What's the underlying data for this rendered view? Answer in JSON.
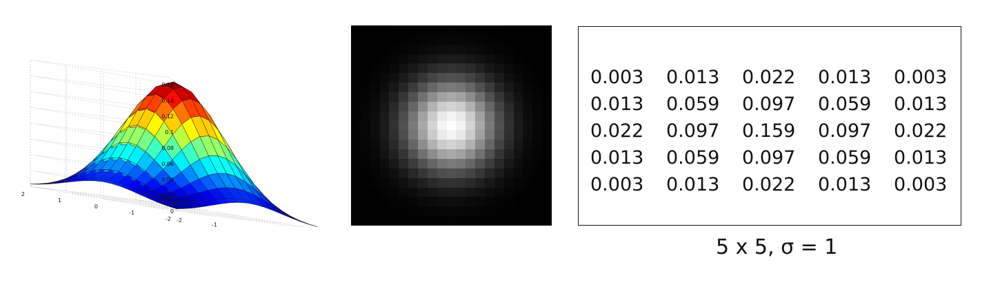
{
  "chart_data": [
    {
      "type": "surface",
      "function": "2D Gaussian, sigma = 1",
      "z_ticks": [
        "0.16",
        "0.14",
        "0.12",
        "0.1",
        "0.08",
        "0.06",
        "0.04",
        "0.02",
        "0"
      ],
      "x_ticks": [
        "-2",
        "-1",
        "0",
        "1",
        "2"
      ],
      "y_ticks": [
        "2",
        "1",
        "0",
        "-1",
        "-2"
      ],
      "zlim": [
        0,
        0.16
      ],
      "xlim": [
        -2,
        2
      ],
      "ylim": [
        -2,
        2
      ],
      "colormap": "jet",
      "grid": true
    },
    {
      "type": "heatmap",
      "colormap": "gray",
      "background": "#000000",
      "sigma": 1
    }
  ],
  "kernel": {
    "rows": [
      [
        "0.003",
        "0.013",
        "0.022",
        "0.013",
        "0.003"
      ],
      [
        "0.013",
        "0.059",
        "0.097",
        "0.059",
        "0.013"
      ],
      [
        "0.022",
        "0.097",
        "0.159",
        "0.097",
        "0.022"
      ],
      [
        "0.013",
        "0.059",
        "0.097",
        "0.059",
        "0.013"
      ],
      [
        "0.003",
        "0.013",
        "0.022",
        "0.013",
        "0.003"
      ]
    ],
    "caption": "5 x 5, σ = 1"
  }
}
